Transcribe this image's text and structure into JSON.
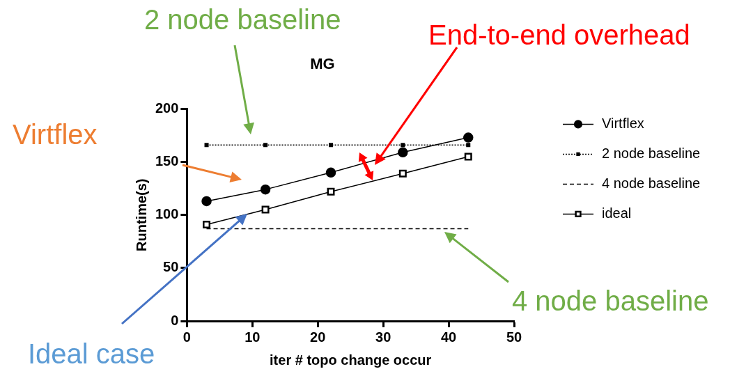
{
  "chart_data": {
    "type": "line",
    "title": "MG",
    "xlabel": "iter # topo change occur",
    "ylabel": "Runtime(s)",
    "xlim": [
      0,
      50
    ],
    "xticks": [
      0,
      10,
      20,
      30,
      40,
      50
    ],
    "ylim": [
      0,
      200
    ],
    "yticks": [
      0,
      50,
      100,
      150,
      200
    ],
    "grid": false,
    "legend": "right",
    "series": [
      {
        "name": "Virtflex",
        "color": "#000000",
        "marker": "circle",
        "line_style": "solid",
        "x": [
          3,
          12,
          22,
          33,
          43
        ],
        "values": [
          113,
          124,
          140,
          159,
          173
        ]
      },
      {
        "name": "2 node baseline",
        "color": "#000000",
        "marker": "square",
        "line_style": "dotted",
        "x": [
          3,
          12,
          22,
          33,
          43
        ],
        "values": [
          166,
          166,
          166,
          166,
          166
        ]
      },
      {
        "name": "4 node baseline",
        "color": "#000000",
        "marker": "none",
        "line_style": "dashed",
        "x": [
          3,
          12,
          22,
          33,
          43
        ],
        "values": [
          87,
          87,
          87,
          87,
          87
        ]
      },
      {
        "name": "ideal",
        "color": "#000000",
        "marker": "square",
        "line_style": "solid",
        "x": [
          3,
          12,
          22,
          33,
          43
        ],
        "values": [
          91,
          105,
          122,
          139,
          155
        ]
      }
    ],
    "annotations": [
      "2 node baseline",
      "End-to-end overhead",
      "Virtflex",
      "Ideal case",
      "4 node baseline"
    ]
  }
}
